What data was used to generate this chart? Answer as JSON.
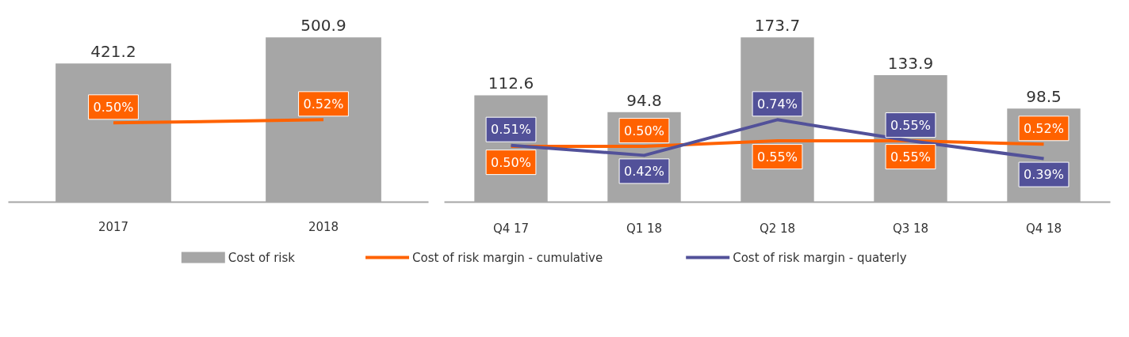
{
  "chart_data": [
    {
      "type": "bar",
      "categories": [
        "2017",
        "2018"
      ],
      "tick_labels": "x",
      "grid": false,
      "data_labels": true,
      "series": [
        {
          "color": "#a6a6a6",
          "values": [
            421.2,
            500.9
          ]
        },
        {
          "type": "line",
          "axis": "y2",
          "color": "#ff6200",
          "values": [
            0.5,
            0.52
          ],
          "value_labels": [
            "0.50%",
            "0.52%"
          ]
        }
      ]
    },
    {
      "type": "bar",
      "categories": [
        "Q4 17",
        "Q1 18",
        "Q2 18",
        "Q3 18",
        "Q4 18"
      ],
      "tick_labels": "x",
      "grid": false,
      "legend": "bottom",
      "data_labels": true,
      "series": [
        {
          "name": "Cost of risk",
          "color": "#a6a6a6",
          "values": [
            112.6,
            94.8,
            173.7,
            133.9,
            98.5
          ]
        },
        {
          "type": "line",
          "axis": "y2",
          "name": "Cost of risk margin - cumulative",
          "color": "#ff6200",
          "values": [
            0.5,
            0.5,
            0.55,
            0.55,
            0.52
          ],
          "value_labels": [
            "0.50%",
            "0.50%",
            "0.55%",
            "0.55%",
            "0.52%"
          ]
        },
        {
          "type": "line",
          "axis": "y2",
          "name": "Cost of risk margin - quaterly",
          "color": "#525199",
          "values": [
            0.51,
            0.42,
            0.74,
            0.55,
            0.39
          ],
          "value_labels": [
            "0.51%",
            "0.42%",
            "0.74%",
            "0.55%",
            "0.39%"
          ]
        }
      ]
    }
  ]
}
